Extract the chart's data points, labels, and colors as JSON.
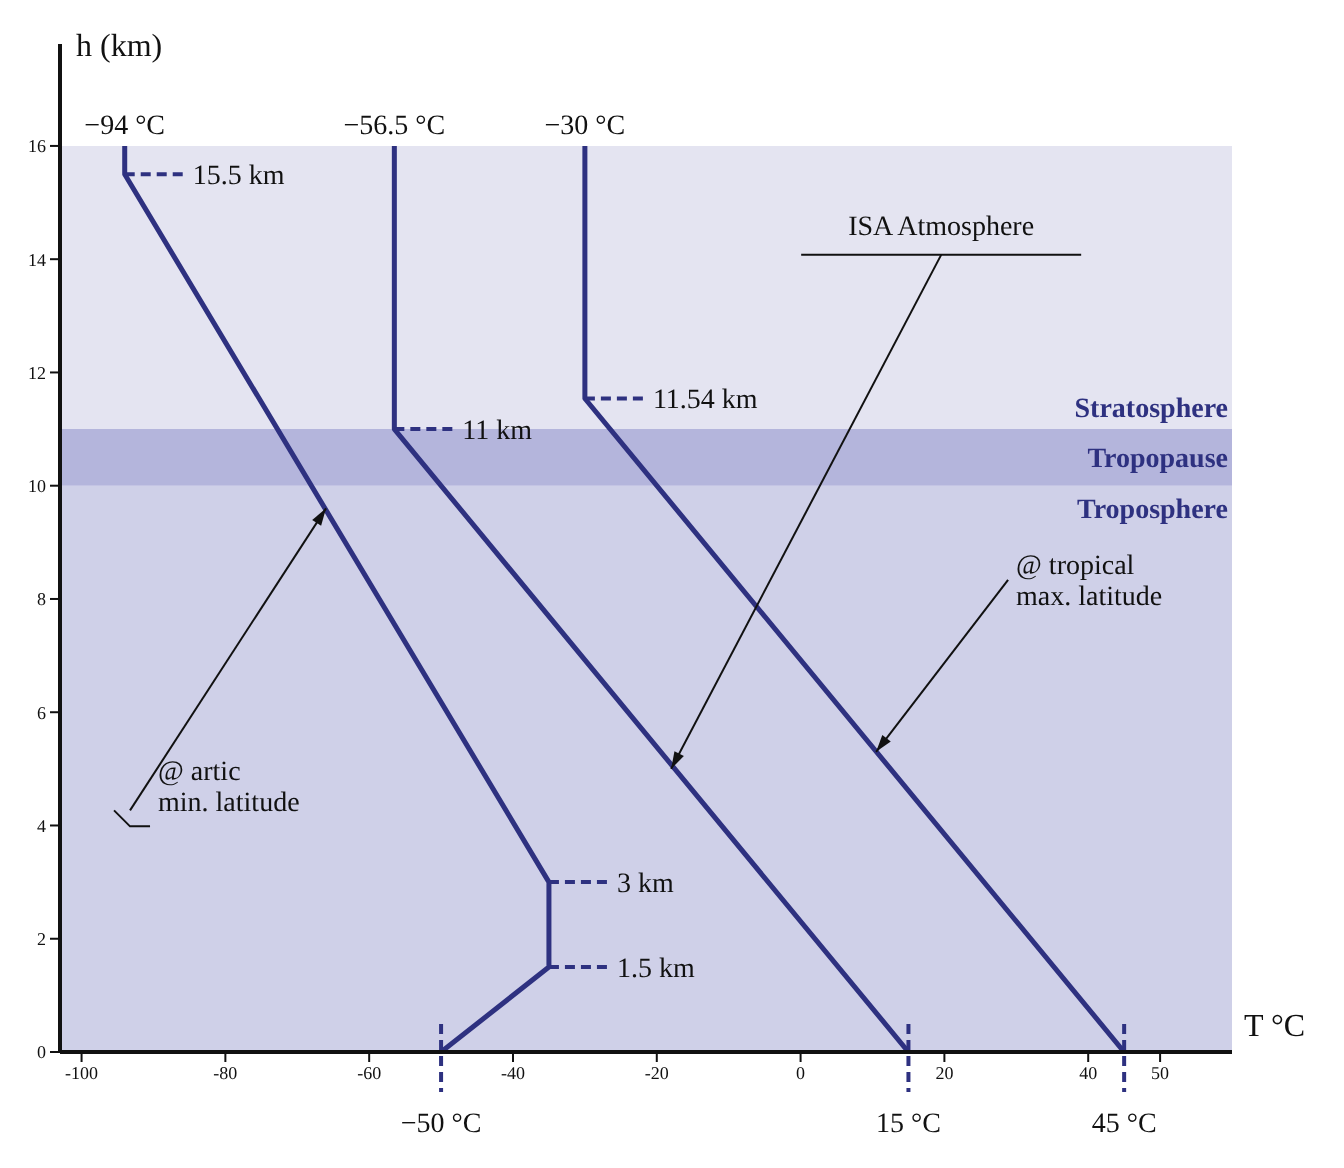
{
  "chart_data": {
    "type": "line",
    "xlabel": "T °C",
    "ylabel": "h (km)",
    "xlim": [
      -103,
      60
    ],
    "ylim": [
      0,
      17.8
    ],
    "xticks": [
      -100,
      -80,
      -60,
      -40,
      -20,
      0,
      20,
      40,
      50
    ],
    "yticks": [
      0,
      2,
      4,
      6,
      8,
      10,
      12,
      14,
      16
    ],
    "marker": "none",
    "line_style": "solid",
    "series": [
      {
        "color": "#2e3180",
        "x": [
          -50,
          -35,
          -35,
          -94,
          -94
        ],
        "values": [
          0,
          1.5,
          3,
          15.5,
          16
        ]
      },
      {
        "color": "#2e3180",
        "x": [
          15,
          -56.5,
          -56.5
        ],
        "values": [
          0,
          11,
          16
        ]
      },
      {
        "color": "#2e3180",
        "x": [
          45,
          -30,
          -30
        ],
        "values": [
          0,
          11.54,
          16
        ]
      }
    ],
    "bands": [
      {
        "axis": "y",
        "from": 0,
        "to": 10,
        "label": "Troposphere",
        "color": "#cfd0e8"
      },
      {
        "axis": "y",
        "from": 10,
        "to": 11,
        "label": "Tropopause",
        "color": "#b4b5dc"
      },
      {
        "axis": "y",
        "from": 11,
        "to": 16,
        "label": "Stratosphere",
        "color": "#e4e4f1"
      }
    ],
    "annotations": [
      {
        "text": "−94 °C",
        "x": -94,
        "y": 16
      },
      {
        "text": "−56.5 °C",
        "x": -56.5,
        "y": 16
      },
      {
        "text": "−30 °C",
        "x": -30,
        "y": 16
      },
      {
        "text": "15.5 km",
        "x": -94,
        "y": 15.5
      },
      {
        "text": "11 km",
        "x": -56.5,
        "y": 11
      },
      {
        "text": "11.54 km",
        "x": -30,
        "y": 11.54
      },
      {
        "text": "3 km",
        "x": -35,
        "y": 3
      },
      {
        "text": "1.5 km",
        "x": -35,
        "y": 1.5
      },
      {
        "text": "−50 °C",
        "x": -50,
        "y": 0
      },
      {
        "text": "15 °C",
        "x": 15,
        "y": 0
      },
      {
        "text": "45 °C",
        "x": 45,
        "y": 0
      },
      {
        "text": "ISA Atmosphere",
        "x": -18,
        "y": 5
      },
      {
        "text": "@ tropical\nmax. latitude",
        "x": 10.5,
        "y": 5.3
      },
      {
        "text": "@ artic\nmin. latitude",
        "x": -66,
        "y": 9.6
      }
    ]
  }
}
